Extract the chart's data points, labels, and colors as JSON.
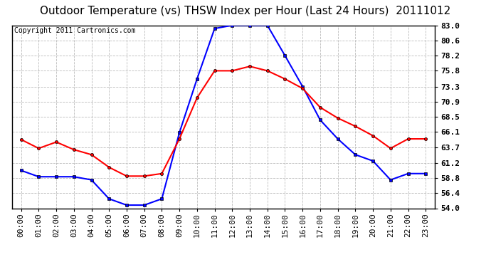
{
  "title": "Outdoor Temperature (vs) THSW Index per Hour (Last 24 Hours)  20111012",
  "copyright": "Copyright 2011 Cartronics.com",
  "x_labels": [
    "00:00",
    "01:00",
    "02:00",
    "03:00",
    "04:00",
    "05:00",
    "06:00",
    "07:00",
    "08:00",
    "09:00",
    "10:00",
    "11:00",
    "12:00",
    "13:00",
    "14:00",
    "15:00",
    "16:00",
    "17:00",
    "18:00",
    "19:00",
    "20:00",
    "21:00",
    "22:00",
    "23:00"
  ],
  "y_ticks": [
    54.0,
    56.4,
    58.8,
    61.2,
    63.7,
    66.1,
    68.5,
    70.9,
    73.3,
    75.8,
    78.2,
    80.6,
    83.0
  ],
  "y_min": 54.0,
  "y_max": 83.0,
  "temp_data": [
    64.9,
    63.5,
    64.5,
    63.3,
    62.5,
    60.5,
    59.1,
    59.1,
    59.5,
    65.0,
    71.5,
    75.8,
    75.8,
    76.5,
    75.8,
    74.5,
    73.0,
    70.0,
    68.3,
    67.0,
    65.5,
    63.5,
    65.0,
    65.0
  ],
  "thsw_data": [
    60.0,
    59.0,
    59.0,
    59.0,
    58.5,
    55.5,
    54.5,
    54.5,
    55.5,
    66.0,
    74.5,
    82.5,
    83.0,
    83.0,
    83.0,
    78.2,
    73.3,
    68.0,
    65.0,
    62.5,
    61.5,
    58.5,
    59.5,
    59.5
  ],
  "temp_color": "#FF0000",
  "thsw_color": "#0000FF",
  "bg_color": "#FFFFFF",
  "plot_bg": "#FFFFFF",
  "grid_color": "#AAAAAA",
  "title_bg": "#C8C8C8",
  "title_fontsize": 11,
  "copyright_fontsize": 7,
  "tick_fontsize": 8,
  "marker_size": 3,
  "line_width": 1.5
}
